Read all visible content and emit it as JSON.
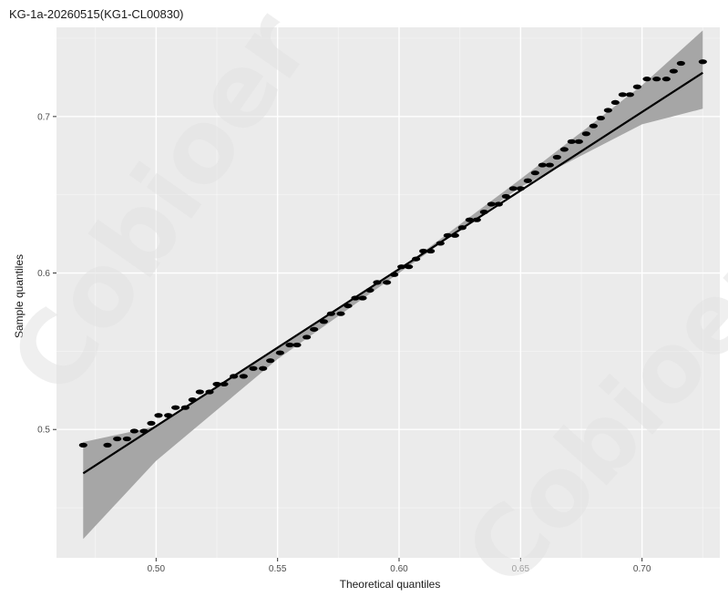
{
  "chart_data": {
    "type": "scatter",
    "title": "KG-1a-20260515(KG1-CL00830)",
    "xlabel": "Theoretical quantiles",
    "ylabel": "Sample quantiles",
    "xlim": [
      0.459,
      0.732
    ],
    "ylim": [
      0.418,
      0.757
    ],
    "x_ticks": [
      {
        "value": 0.5,
        "label": "0.50"
      },
      {
        "value": 0.55,
        "label": "0.55"
      },
      {
        "value": 0.6,
        "label": "0.60"
      },
      {
        "value": 0.65,
        "label": "0.65"
      },
      {
        "value": 0.7,
        "label": "0.70"
      }
    ],
    "y_ticks": [
      {
        "value": 0.5,
        "label": "0.5"
      },
      {
        "value": 0.6,
        "label": "0.6"
      },
      {
        "value": 0.7,
        "label": "0.7"
      }
    ],
    "points": [
      [
        0.47,
        0.49
      ],
      [
        0.48,
        0.49
      ],
      [
        0.484,
        0.494
      ],
      [
        0.488,
        0.494
      ],
      [
        0.491,
        0.499
      ],
      [
        0.495,
        0.499
      ],
      [
        0.498,
        0.504
      ],
      [
        0.501,
        0.509
      ],
      [
        0.505,
        0.509
      ],
      [
        0.508,
        0.514
      ],
      [
        0.512,
        0.514
      ],
      [
        0.515,
        0.519
      ],
      [
        0.518,
        0.524
      ],
      [
        0.522,
        0.524
      ],
      [
        0.525,
        0.529
      ],
      [
        0.528,
        0.529
      ],
      [
        0.532,
        0.534
      ],
      [
        0.536,
        0.534
      ],
      [
        0.54,
        0.539
      ],
      [
        0.544,
        0.539
      ],
      [
        0.547,
        0.544
      ],
      [
        0.551,
        0.549
      ],
      [
        0.555,
        0.554
      ],
      [
        0.558,
        0.554
      ],
      [
        0.562,
        0.559
      ],
      [
        0.565,
        0.564
      ],
      [
        0.569,
        0.569
      ],
      [
        0.572,
        0.574
      ],
      [
        0.576,
        0.574
      ],
      [
        0.579,
        0.579
      ],
      [
        0.582,
        0.584
      ],
      [
        0.585,
        0.584
      ],
      [
        0.588,
        0.589
      ],
      [
        0.591,
        0.594
      ],
      [
        0.595,
        0.594
      ],
      [
        0.598,
        0.599
      ],
      [
        0.601,
        0.604
      ],
      [
        0.604,
        0.604
      ],
      [
        0.607,
        0.609
      ],
      [
        0.61,
        0.614
      ],
      [
        0.613,
        0.614
      ],
      [
        0.617,
        0.619
      ],
      [
        0.62,
        0.624
      ],
      [
        0.623,
        0.624
      ],
      [
        0.626,
        0.629
      ],
      [
        0.629,
        0.634
      ],
      [
        0.632,
        0.634
      ],
      [
        0.635,
        0.639
      ],
      [
        0.638,
        0.644
      ],
      [
        0.641,
        0.644
      ],
      [
        0.644,
        0.649
      ],
      [
        0.647,
        0.654
      ],
      [
        0.65,
        0.654
      ],
      [
        0.653,
        0.659
      ],
      [
        0.656,
        0.664
      ],
      [
        0.659,
        0.669
      ],
      [
        0.662,
        0.669
      ],
      [
        0.665,
        0.674
      ],
      [
        0.668,
        0.679
      ],
      [
        0.671,
        0.684
      ],
      [
        0.674,
        0.684
      ],
      [
        0.677,
        0.689
      ],
      [
        0.68,
        0.694
      ],
      [
        0.683,
        0.699
      ],
      [
        0.686,
        0.704
      ],
      [
        0.689,
        0.709
      ],
      [
        0.692,
        0.714
      ],
      [
        0.695,
        0.714
      ],
      [
        0.698,
        0.719
      ],
      [
        0.702,
        0.724
      ],
      [
        0.706,
        0.724
      ],
      [
        0.71,
        0.724
      ],
      [
        0.713,
        0.729
      ],
      [
        0.716,
        0.734
      ],
      [
        0.725,
        0.735
      ]
    ],
    "reference_line": [
      [
        0.47,
        0.472
      ],
      [
        0.725,
        0.728
      ]
    ],
    "confidence_band": {
      "x": [
        0.47,
        0.5,
        0.55,
        0.6,
        0.65,
        0.7,
        0.725
      ],
      "lower": [
        0.43,
        0.48,
        0.545,
        0.6,
        0.655,
        0.695,
        0.705
      ],
      "upper": [
        0.492,
        0.502,
        0.553,
        0.602,
        0.66,
        0.72,
        0.755
      ]
    },
    "grid": true,
    "colors": {
      "panel_background": "#ebebeb",
      "grid_major": "#ffffff",
      "grid_minor": "#f5f5f5",
      "confidence_band": "#a6a6a6",
      "points": "#000000",
      "reference_line": "#000000"
    }
  },
  "watermark": {
    "text": "Cobioer"
  }
}
